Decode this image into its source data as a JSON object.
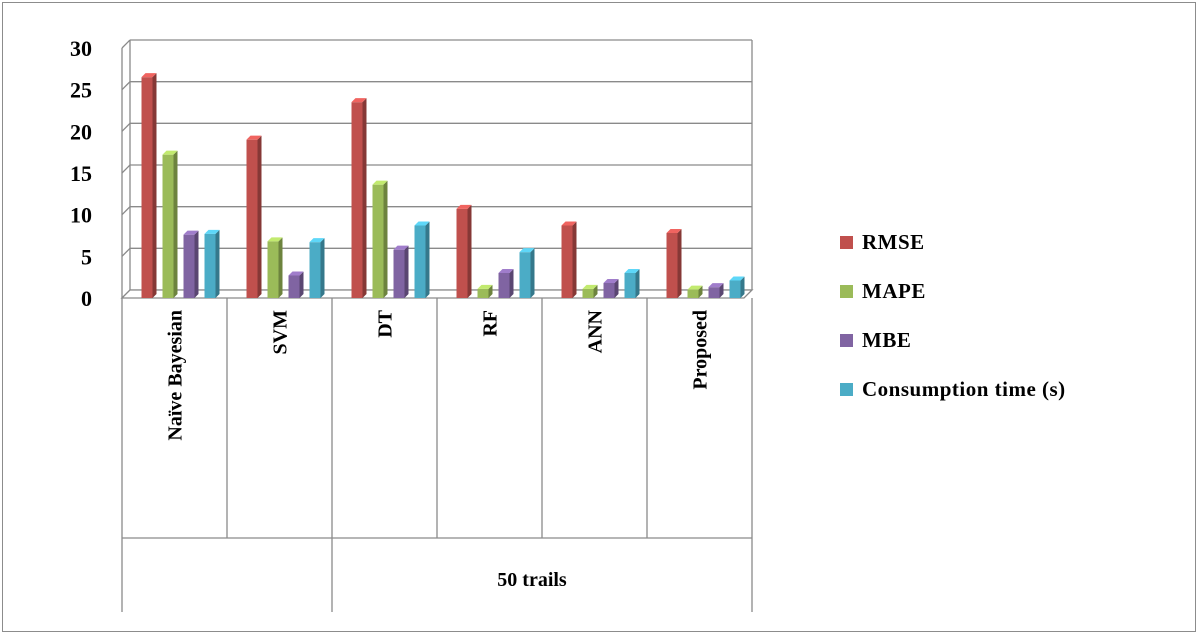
{
  "chart_data": {
    "type": "bar",
    "title": "",
    "xlabel": "",
    "ylabel": "",
    "ylim": [
      0,
      30
    ],
    "yticks": [
      0,
      5,
      10,
      15,
      20,
      25,
      30
    ],
    "grid": true,
    "legend_position": "right",
    "categories": [
      "Naïve Bayesian",
      "SVM",
      "DT",
      "RF",
      "ANN",
      "Proposed"
    ],
    "group_label": "50 trails",
    "series": [
      {
        "name": "RMSE",
        "color": "#c0504d",
        "values": [
          26.5,
          19,
          23.5,
          10.7,
          8.7,
          7.8
        ]
      },
      {
        "name": "MAPE",
        "color": "#9bbb59",
        "values": [
          17.2,
          6.8,
          13.6,
          1.1,
          1.1,
          1.0
        ]
      },
      {
        "name": "MBE",
        "color": "#8064a2",
        "values": [
          7.6,
          2.7,
          5.8,
          3.0,
          1.8,
          1.3
        ]
      },
      {
        "name": "Consumption time (s)",
        "color": "#4bacc6",
        "values": [
          7.7,
          6.7,
          8.7,
          5.5,
          3.0,
          2.1
        ]
      }
    ]
  }
}
